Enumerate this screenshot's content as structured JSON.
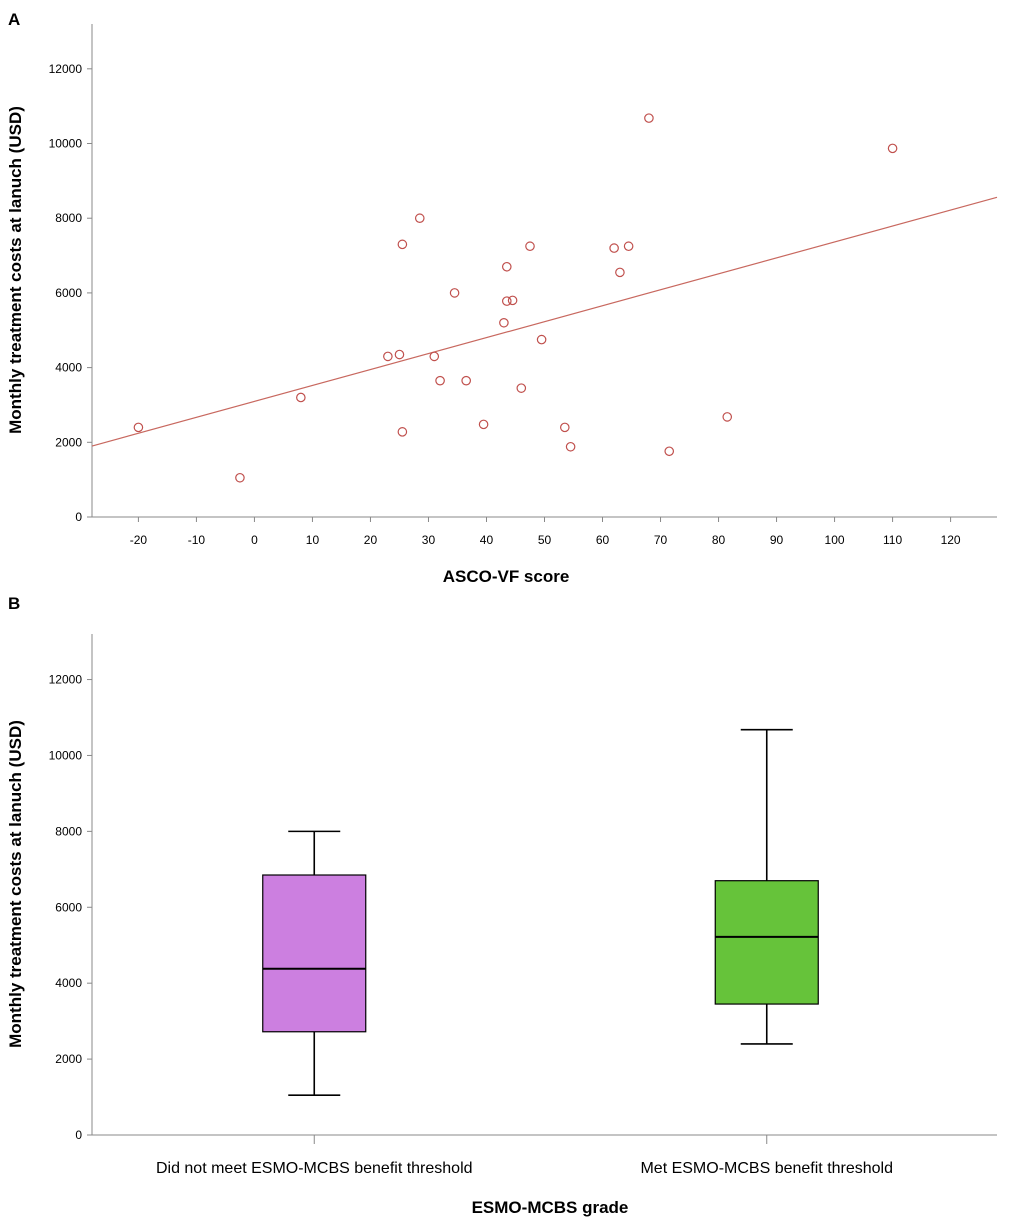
{
  "chart_data": [
    {
      "panel": "A",
      "type": "scatter",
      "title": "",
      "xlabel": "ASCO-VF score",
      "ylabel": "Monthly treatment costs at lanuch (USD)",
      "xlim": [
        -28,
        128
      ],
      "ylim": [
        0,
        13200
      ],
      "xticks": [
        "-20",
        "-10",
        "0",
        "10",
        "20",
        "30",
        "40",
        "50",
        "60",
        "70",
        "80",
        "90",
        "100",
        "110",
        "120"
      ],
      "yticks": [
        "0",
        "2000",
        "4000",
        "6000",
        "8000",
        "10000",
        "12000"
      ],
      "points": [
        [
          -20,
          2400
        ],
        [
          -2.5,
          1050
        ],
        [
          8,
          3200
        ],
        [
          23,
          4300
        ],
        [
          25,
          4350
        ],
        [
          25.5,
          7300
        ],
        [
          25.5,
          2280
        ],
        [
          28.5,
          8000
        ],
        [
          31,
          4300
        ],
        [
          32,
          3650
        ],
        [
          34.5,
          6000
        ],
        [
          36.5,
          3650
        ],
        [
          39.5,
          2480
        ],
        [
          43,
          5200
        ],
        [
          43.5,
          6700
        ],
        [
          43.5,
          5780
        ],
        [
          44.5,
          5800
        ],
        [
          46,
          3450
        ],
        [
          47.5,
          7250
        ],
        [
          49.5,
          4750
        ],
        [
          53.5,
          2400
        ],
        [
          54.5,
          1880
        ],
        [
          62,
          7200
        ],
        [
          63,
          6550
        ],
        [
          64.5,
          7250
        ],
        [
          68,
          10680
        ],
        [
          71.5,
          1760
        ],
        [
          81.5,
          2680
        ],
        [
          110,
          9870
        ]
      ],
      "trendline": {
        "x": [
          -28,
          128
        ],
        "y": [
          1900,
          8560
        ]
      },
      "marker_color": "#c0504d",
      "line_color": "#c8685f"
    },
    {
      "panel": "B",
      "type": "boxplot",
      "title": "",
      "xlabel": "ESMO-MCBS grade",
      "ylabel": "Monthly treatment costs at lanuch (USD)",
      "ylim": [
        0,
        13200
      ],
      "yticks": [
        "0",
        "2000",
        "4000",
        "6000",
        "8000",
        "10000",
        "12000"
      ],
      "categories": [
        "Did not meet ESMO-MCBS benefit threshold",
        "Met ESMO-MCBS benefit threshold"
      ],
      "boxes": [
        {
          "min": 1050,
          "q1": 2720,
          "median": 4380,
          "q3": 6850,
          "max": 8000,
          "color": "#cc7fe0"
        },
        {
          "min": 2400,
          "q1": 3450,
          "median": 5220,
          "q3": 6700,
          "max": 10680,
          "color": "#66c33a"
        }
      ]
    }
  ]
}
